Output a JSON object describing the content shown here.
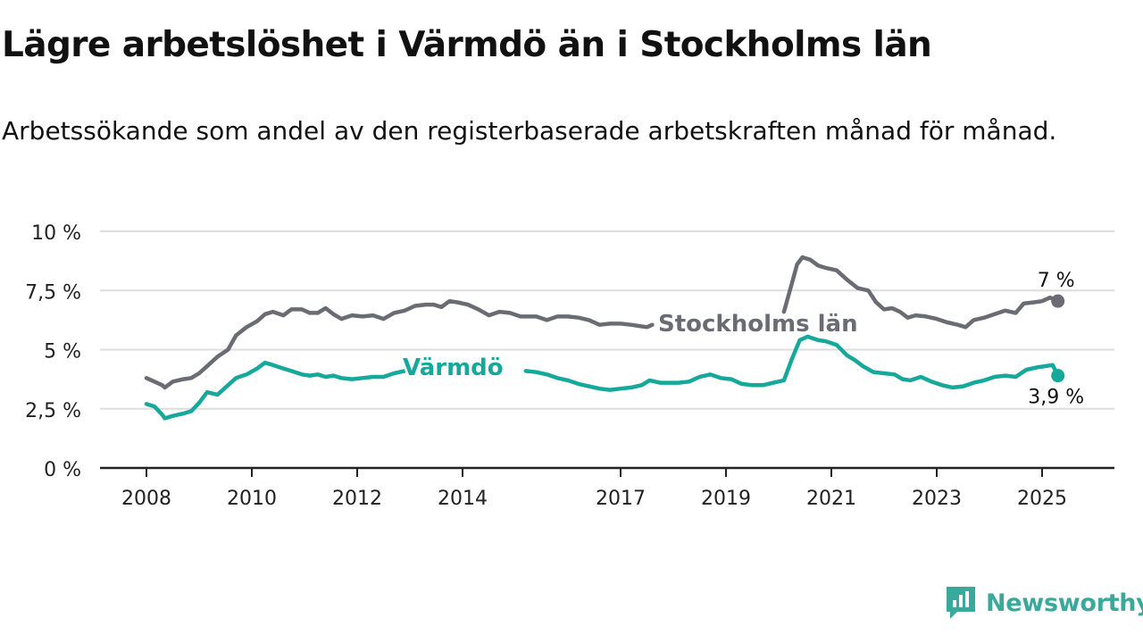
{
  "title": "Lägre arbetslöshet i Värmdö än i Stockholms län",
  "subtitle": "Arbetssökande som andel av den registerbaserade arbetskraften månad för månad.",
  "brand": {
    "name": "Newsworthy",
    "icon": "newsworthy-logo-icon"
  },
  "colors": {
    "stockholm": "#6b6b73",
    "varmdo": "#16a89a",
    "axis": "#222222",
    "grid": "#dddddd"
  },
  "chart_data": {
    "type": "line",
    "ylim": [
      0,
      10
    ],
    "y_ticks": [
      {
        "value": 0,
        "label": "0 %"
      },
      {
        "value": 2.5,
        "label": "2,5 %"
      },
      {
        "value": 5,
        "label": "5 %"
      },
      {
        "value": 7.5,
        "label": "7,5 %"
      },
      {
        "value": 10,
        "label": "10 %"
      }
    ],
    "x_ticks": [
      {
        "value": 2008.0,
        "label": "2008"
      },
      {
        "value": 2010.0,
        "label": "2010"
      },
      {
        "value": 2012.0,
        "label": "2012"
      },
      {
        "value": 2014.0,
        "label": "2014"
      },
      {
        "value": 2017.0,
        "label": "2017"
      },
      {
        "value": 2019.0,
        "label": "2019"
      },
      {
        "value": 2021.0,
        "label": "2021"
      },
      {
        "value": 2023.0,
        "label": "2023"
      },
      {
        "value": 2025.0,
        "label": "2025"
      }
    ],
    "xlim": [
      2007.2,
      2026.3
    ],
    "series": [
      {
        "name": "Stockholms län",
        "key": "stockholm",
        "end_label": "7 %",
        "points": [
          [
            2008.0,
            3.8
          ],
          [
            2008.15,
            3.65
          ],
          [
            2008.3,
            3.5
          ],
          [
            2008.35,
            3.4
          ],
          [
            2008.5,
            3.65
          ],
          [
            2008.7,
            3.75
          ],
          [
            2008.85,
            3.8
          ],
          [
            2009.0,
            4.0
          ],
          [
            2009.15,
            4.3
          ],
          [
            2009.35,
            4.7
          ],
          [
            2009.55,
            5.0
          ],
          [
            2009.7,
            5.6
          ],
          [
            2009.9,
            5.95
          ],
          [
            2010.1,
            6.2
          ],
          [
            2010.25,
            6.5
          ],
          [
            2010.4,
            6.6
          ],
          [
            2010.6,
            6.45
          ],
          [
            2010.75,
            6.7
          ],
          [
            2010.95,
            6.7
          ],
          [
            2011.1,
            6.55
          ],
          [
            2011.25,
            6.55
          ],
          [
            2011.4,
            6.75
          ],
          [
            2011.55,
            6.5
          ],
          [
            2011.7,
            6.3
          ],
          [
            2011.9,
            6.45
          ],
          [
            2012.1,
            6.4
          ],
          [
            2012.3,
            6.45
          ],
          [
            2012.5,
            6.3
          ],
          [
            2012.7,
            6.55
          ],
          [
            2012.9,
            6.65
          ],
          [
            2013.1,
            6.85
          ],
          [
            2013.3,
            6.9
          ],
          [
            2013.45,
            6.9
          ],
          [
            2013.6,
            6.8
          ],
          [
            2013.75,
            7.05
          ],
          [
            2013.9,
            7.0
          ],
          [
            2014.1,
            6.9
          ],
          [
            2014.3,
            6.7
          ],
          [
            2014.5,
            6.45
          ],
          [
            2014.7,
            6.6
          ],
          [
            2014.9,
            6.55
          ],
          [
            2015.1,
            6.4
          ],
          [
            2015.4,
            6.4
          ],
          [
            2015.6,
            6.25
          ],
          [
            2015.8,
            6.4
          ],
          [
            2016.0,
            6.4
          ],
          [
            2016.2,
            6.35
          ],
          [
            2016.4,
            6.25
          ],
          [
            2016.6,
            6.05
          ],
          [
            2016.8,
            6.1
          ],
          [
            2017.0,
            6.1
          ],
          [
            2017.2,
            6.05
          ],
          [
            2017.35,
            6.0
          ],
          [
            2017.5,
            5.95
          ],
          [
            2017.6,
            6.05
          ],
          [
            2020.1,
            6.6
          ],
          [
            2020.25,
            7.8
          ],
          [
            2020.35,
            8.6
          ],
          [
            2020.45,
            8.9
          ],
          [
            2020.6,
            8.8
          ],
          [
            2020.75,
            8.55
          ],
          [
            2020.9,
            8.45
          ],
          [
            2021.1,
            8.35
          ],
          [
            2021.3,
            7.95
          ],
          [
            2021.5,
            7.6
          ],
          [
            2021.7,
            7.5
          ],
          [
            2021.85,
            7.0
          ],
          [
            2022.0,
            6.7
          ],
          [
            2022.15,
            6.75
          ],
          [
            2022.3,
            6.6
          ],
          [
            2022.45,
            6.35
          ],
          [
            2022.6,
            6.45
          ],
          [
            2022.8,
            6.4
          ],
          [
            2023.0,
            6.3
          ],
          [
            2023.2,
            6.15
          ],
          [
            2023.4,
            6.05
          ],
          [
            2023.55,
            5.95
          ],
          [
            2023.7,
            6.25
          ],
          [
            2023.9,
            6.35
          ],
          [
            2024.1,
            6.5
          ],
          [
            2024.3,
            6.65
          ],
          [
            2024.5,
            6.55
          ],
          [
            2024.65,
            6.95
          ],
          [
            2024.85,
            7.0
          ],
          [
            2025.0,
            7.05
          ],
          [
            2025.15,
            7.2
          ],
          [
            2025.3,
            7.05
          ]
        ]
      },
      {
        "name": "Värmdö",
        "key": "varmdo",
        "end_label": "3,9 %",
        "points": [
          [
            2008.0,
            2.7
          ],
          [
            2008.15,
            2.6
          ],
          [
            2008.3,
            2.25
          ],
          [
            2008.35,
            2.1
          ],
          [
            2008.5,
            2.2
          ],
          [
            2008.7,
            2.3
          ],
          [
            2008.85,
            2.4
          ],
          [
            2009.0,
            2.75
          ],
          [
            2009.15,
            3.2
          ],
          [
            2009.35,
            3.1
          ],
          [
            2009.55,
            3.5
          ],
          [
            2009.7,
            3.8
          ],
          [
            2009.9,
            3.95
          ],
          [
            2010.1,
            4.2
          ],
          [
            2010.25,
            4.45
          ],
          [
            2010.4,
            4.35
          ],
          [
            2010.6,
            4.2
          ],
          [
            2010.75,
            4.1
          ],
          [
            2010.95,
            3.95
          ],
          [
            2011.1,
            3.9
          ],
          [
            2011.25,
            3.95
          ],
          [
            2011.4,
            3.85
          ],
          [
            2011.55,
            3.9
          ],
          [
            2011.7,
            3.8
          ],
          [
            2011.9,
            3.75
          ],
          [
            2012.1,
            3.8
          ],
          [
            2012.3,
            3.85
          ],
          [
            2012.5,
            3.85
          ],
          [
            2012.7,
            4.0
          ],
          [
            2012.9,
            4.1
          ],
          [
            2013.05,
            4.2
          ],
          [
            2015.2,
            4.1
          ],
          [
            2015.4,
            4.05
          ],
          [
            2015.6,
            3.95
          ],
          [
            2015.8,
            3.8
          ],
          [
            2016.0,
            3.7
          ],
          [
            2016.2,
            3.55
          ],
          [
            2016.4,
            3.45
          ],
          [
            2016.6,
            3.35
          ],
          [
            2016.8,
            3.3
          ],
          [
            2017.0,
            3.35
          ],
          [
            2017.2,
            3.4
          ],
          [
            2017.4,
            3.5
          ],
          [
            2017.55,
            3.7
          ],
          [
            2017.75,
            3.6
          ],
          [
            2017.9,
            3.6
          ],
          [
            2018.1,
            3.6
          ],
          [
            2018.3,
            3.65
          ],
          [
            2018.5,
            3.85
          ],
          [
            2018.7,
            3.95
          ],
          [
            2018.9,
            3.8
          ],
          [
            2019.1,
            3.75
          ],
          [
            2019.3,
            3.55
          ],
          [
            2019.5,
            3.5
          ],
          [
            2019.7,
            3.5
          ],
          [
            2019.9,
            3.6
          ],
          [
            2020.1,
            3.7
          ],
          [
            2020.25,
            4.6
          ],
          [
            2020.4,
            5.4
          ],
          [
            2020.55,
            5.55
          ],
          [
            2020.75,
            5.4
          ],
          [
            2020.9,
            5.35
          ],
          [
            2021.1,
            5.2
          ],
          [
            2021.3,
            4.75
          ],
          [
            2021.45,
            4.55
          ],
          [
            2021.6,
            4.3
          ],
          [
            2021.8,
            4.05
          ],
          [
            2022.0,
            4.0
          ],
          [
            2022.2,
            3.95
          ],
          [
            2022.35,
            3.75
          ],
          [
            2022.5,
            3.7
          ],
          [
            2022.7,
            3.85
          ],
          [
            2022.9,
            3.65
          ],
          [
            2023.1,
            3.5
          ],
          [
            2023.3,
            3.4
          ],
          [
            2023.5,
            3.45
          ],
          [
            2023.7,
            3.6
          ],
          [
            2023.9,
            3.7
          ],
          [
            2024.1,
            3.85
          ],
          [
            2024.3,
            3.9
          ],
          [
            2024.5,
            3.85
          ],
          [
            2024.7,
            4.15
          ],
          [
            2024.9,
            4.25
          ],
          [
            2025.05,
            4.3
          ],
          [
            2025.2,
            4.35
          ],
          [
            2025.3,
            3.9
          ]
        ]
      }
    ],
    "inline_labels": [
      {
        "series": "stockholm",
        "text": "Stockholms län"
      },
      {
        "series": "varmdo",
        "text": "Värmdö"
      }
    ]
  }
}
